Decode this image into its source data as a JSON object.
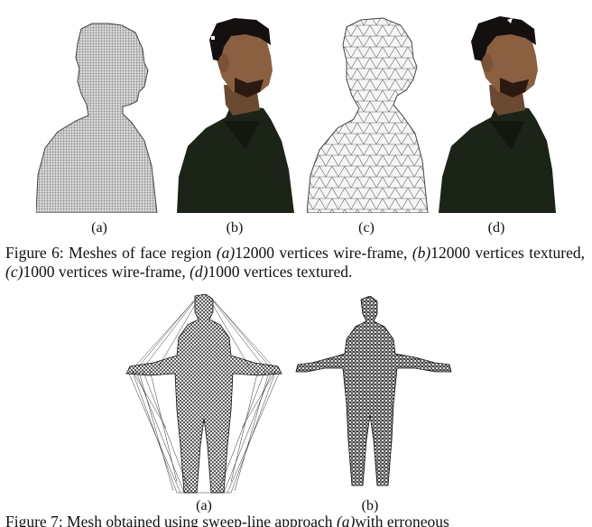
{
  "figure6": {
    "sublabels": [
      "(a)",
      "(b)",
      "(c)",
      "(d)"
    ],
    "caption": {
      "prefix": "Figure 6: Meshes of face region ",
      "a_label": "(a)",
      "a_text": "12000 vertices wire-frame, ",
      "b_label": "(b)",
      "b_text": "12000 vertices textured, ",
      "c_label": "(c)",
      "c_text": "1000 vertices wire-frame, ",
      "d_label": "(d)",
      "d_text": "1000 vertices textured."
    }
  },
  "figure7": {
    "sublabels": [
      "(a)",
      "(b)"
    ],
    "caption_partial": {
      "prefix": "Figure 7: Mesh obtained using sweep-line approach ",
      "a_label": "(a)",
      "a_text": "with erroneous"
    }
  }
}
